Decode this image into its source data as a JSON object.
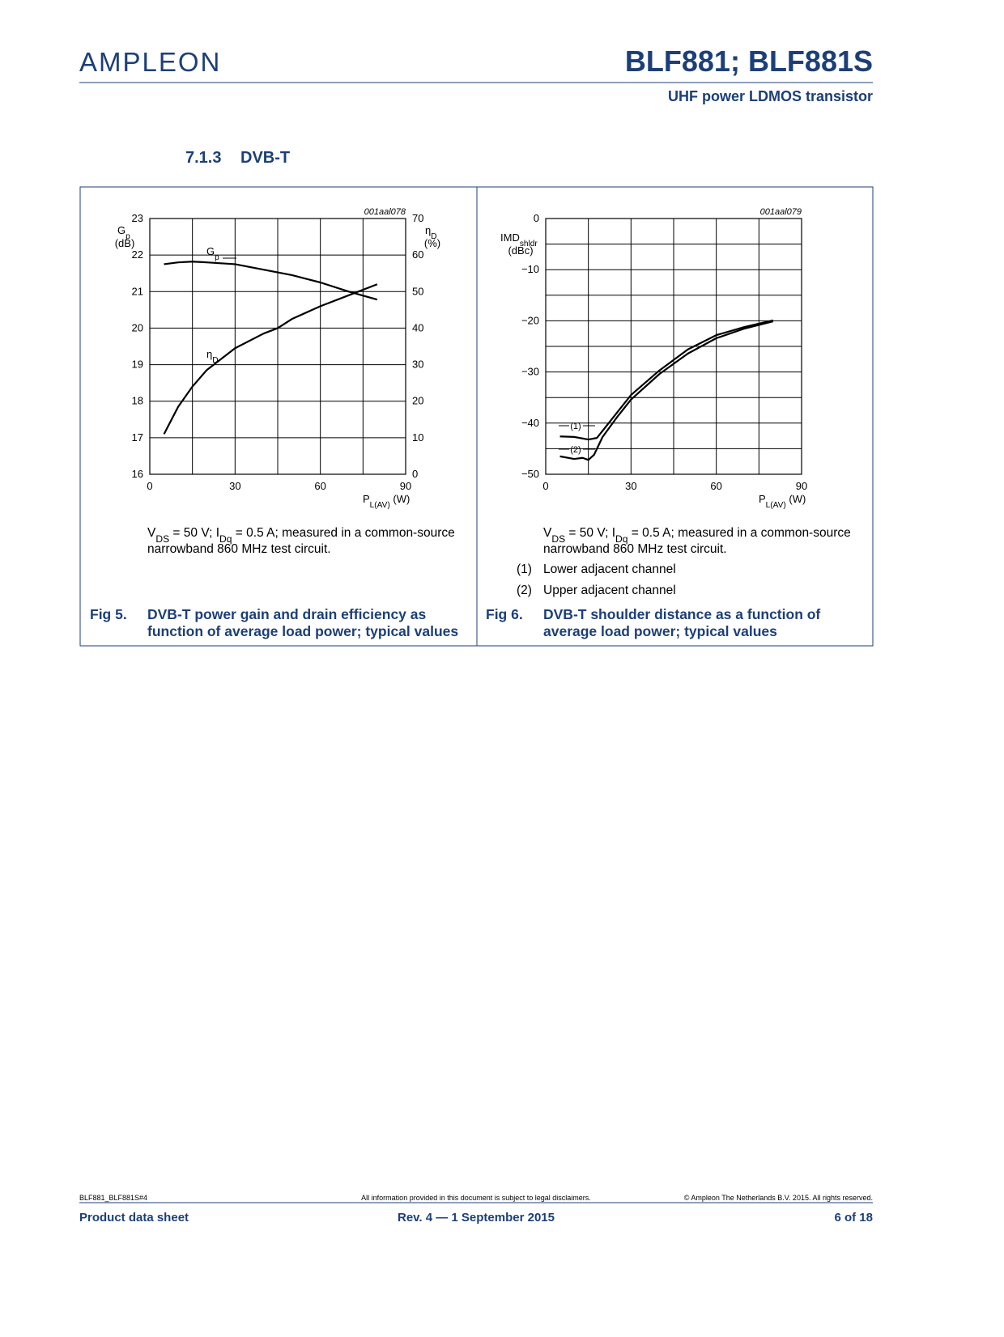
{
  "header": {
    "logo": "AMPLEON",
    "title": "BLF881; BLF881S",
    "subtitle": "UHF power LDMOS transistor"
  },
  "section": {
    "number": "7.1.3",
    "title": "DVB-T"
  },
  "chart_data": [
    {
      "type": "line",
      "code": "001aal078",
      "xlabel": [
        "P",
        "L(AV)",
        " (W)"
      ],
      "ylabel": [
        "G",
        "p",
        "(dB)"
      ],
      "y2label": [
        "η",
        "D",
        "(%)"
      ],
      "xlim": [
        0,
        90
      ],
      "xticks": [
        0,
        30,
        60,
        90
      ],
      "minor_xticks": [
        15,
        45,
        75
      ],
      "ylim": [
        16,
        23
      ],
      "yticks": [
        16,
        17,
        18,
        19,
        20,
        21,
        22,
        23
      ],
      "y2lim": [
        0,
        70
      ],
      "y2ticks": [
        0,
        10,
        20,
        30,
        40,
        50,
        60,
        70
      ],
      "grid": true,
      "series": [
        {
          "name": [
            "G",
            "p"
          ],
          "color": "#000000",
          "x": [
            5,
            10,
            15,
            20,
            30,
            40,
            50,
            60,
            70,
            80
          ],
          "values": [
            21.75,
            21.8,
            21.82,
            21.8,
            21.75,
            21.6,
            21.45,
            21.25,
            21.0,
            20.78
          ]
        },
        {
          "name": [
            "η",
            "D"
          ],
          "color": "#000000",
          "axis": "y2",
          "x": [
            5,
            10,
            15,
            20,
            30,
            40,
            45,
            50,
            60,
            70,
            80
          ],
          "values": [
            11,
            18.5,
            24,
            28.5,
            34.5,
            38.5,
            40,
            42.5,
            46,
            49,
            52
          ]
        }
      ]
    },
    {
      "type": "line",
      "code": "001aal079",
      "xlabel": [
        "P",
        "L(AV)",
        " (W)"
      ],
      "ylabel": [
        "IMD",
        "shldr",
        "(dBc)"
      ],
      "xlim": [
        0,
        90
      ],
      "xticks": [
        0,
        30,
        60,
        90
      ],
      "minor_xticks": [
        15,
        45,
        75
      ],
      "ylim": [
        -50,
        0
      ],
      "yticks": [
        0,
        {
          "value": -10,
          "label": "−10"
        },
        {
          "value": -20,
          "label": "−20"
        },
        {
          "value": -30,
          "label": "−30"
        },
        {
          "value": -40,
          "label": "−40"
        },
        {
          "value": -50,
          "label": "−50"
        }
      ],
      "minor_yticks": [
        -5,
        -15,
        -25,
        -35,
        -45
      ],
      "grid": true,
      "series": [
        {
          "name": "(1)",
          "color": "#000000",
          "x": [
            5,
            10,
            15,
            18,
            20,
            25,
            30,
            40,
            50,
            60,
            70,
            80
          ],
          "values": [
            -42.6,
            -42.7,
            -43.2,
            -42.9,
            -41.5,
            -38,
            -34.5,
            -29.7,
            -25.6,
            -22.8,
            -21.2,
            -19.9
          ]
        },
        {
          "name": "(2)",
          "color": "#000000",
          "x": [
            5,
            10,
            13,
            15,
            17,
            20,
            25,
            30,
            40,
            50,
            60,
            70,
            80
          ],
          "values": [
            -46.5,
            -47,
            -46.8,
            -47.2,
            -46.2,
            -42.7,
            -38.9,
            -35.4,
            -30.4,
            -26.4,
            -23.4,
            -21.5,
            -20.1
          ]
        }
      ]
    }
  ],
  "figures": [
    {
      "number": "Fig 5.",
      "caption": [
        "DVB-T power gain and drain efficiency as",
        "function of average load power; typical values"
      ],
      "note": [
        [
          "V",
          "DS",
          " = 50 V; I",
          "Dq",
          " = 0.5 A; measured in a common-source"
        ],
        [
          "narrowband 860 MHz test circuit."
        ]
      ]
    },
    {
      "number": "Fig 6.",
      "caption": [
        "DVB-T shoulder distance as a function of",
        "average load power; typical values"
      ],
      "note": [
        [
          "V",
          "DS",
          " = 50 V; I",
          "Dq",
          " = 0.5 A; measured in a common-source"
        ],
        [
          "narrowband 860 MHz test circuit."
        ]
      ],
      "legend": [
        {
          "key": "(1)",
          "text": "Lower adjacent channel"
        },
        {
          "key": "(2)",
          "text": "Upper adjacent channel"
        }
      ]
    }
  ],
  "footer": {
    "doc_id": "BLF881_BLF881S#4",
    "disclaimer": "All information provided in this document is subject to legal disclaimers.",
    "copyright": "© Ampleon The Netherlands B.V. 2015. All rights reserved.",
    "doc_type": "Product data sheet",
    "revision": "Rev. 4 — 1 September 2015",
    "page": "6 of 18"
  }
}
